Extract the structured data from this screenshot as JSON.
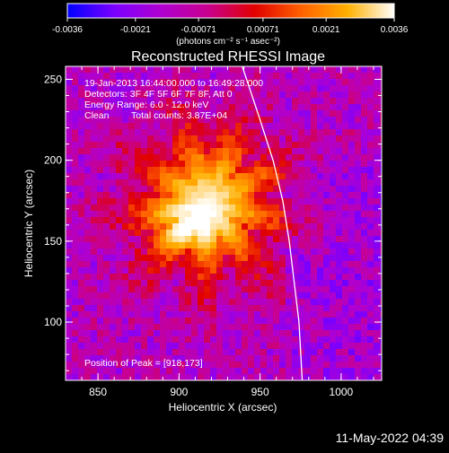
{
  "chart_data": {
    "type": "heatmap",
    "title": "Reconstructed RHESSI Image",
    "xlabel": "Heliocentric X (arcsec)",
    "ylabel": "Heliocentric Y (arcsec)",
    "xlim": [
      830,
      1025
    ],
    "ylim": [
      64,
      258
    ],
    "x_ticks": [
      850,
      900,
      950,
      1000
    ],
    "y_ticks": [
      100,
      150,
      200,
      250
    ],
    "colorbar": {
      "min": -0.0036,
      "max": 0.0036,
      "ticks": [
        "-0.0036",
        "-0.0021",
        "-0.00071",
        "0.00071",
        "0.0021",
        "0.0036"
      ],
      "tick_values": [
        -0.0036,
        -0.0021,
        -0.00071,
        0.00071,
        0.0021,
        0.0036
      ],
      "unit_label": "(photons cm⁻² s⁻¹ asec⁻²)",
      "colors": [
        "#0000ff",
        "#7a00ff",
        "#b000d0",
        "#c80090",
        "#e00000",
        "#ff6000",
        "#ffb000",
        "#ffffff"
      ]
    },
    "annotations": {
      "time_range": "19-Jan-2013 16:44:00.000 to 16:49:28.000",
      "detectors": "Detectors: 3F 4F 5F 6F 7F 8F, Att 0",
      "energy_range": "Energy Range: 6.0 - 12.0 keV",
      "method": "Clean",
      "total_counts": "Total counts: 3.87E+04",
      "peak_position": "Position of Peak = [918,173]"
    },
    "peak": [
      918,
      173
    ],
    "limb": [
      [
        939,
        258
      ],
      [
        950,
        225
      ],
      [
        958,
        200
      ],
      [
        964,
        175
      ],
      [
        968,
        150
      ],
      [
        971,
        125
      ],
      [
        974,
        100
      ],
      [
        976,
        64
      ]
    ]
  },
  "footer": {
    "timestamp": "11-May-2022 04:39"
  }
}
